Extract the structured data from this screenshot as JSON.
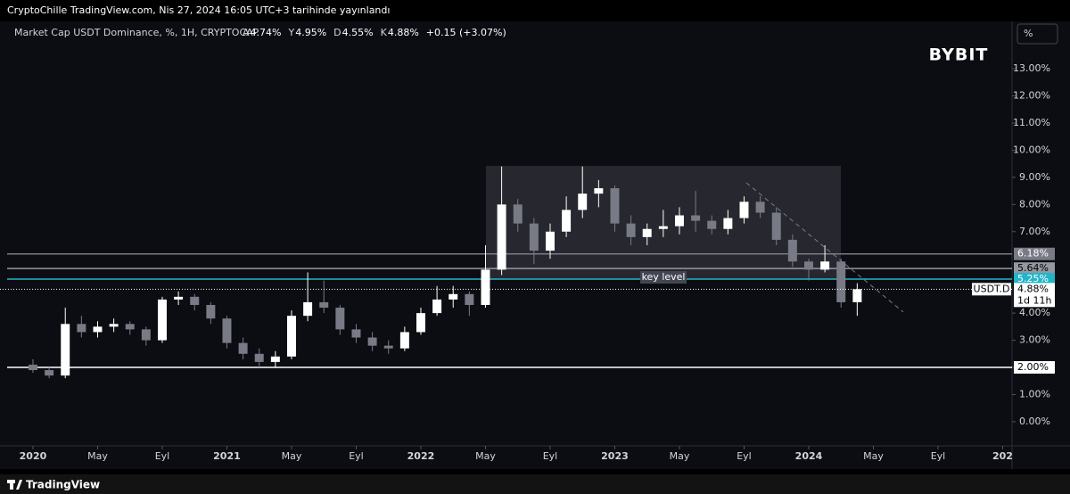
{
  "header": {
    "published": "CryptoChille TradingView.com, Nis 27, 2024 16:05 UTC+3 tarihinde yayınlandı"
  },
  "footer": {
    "brand": "TradingView"
  },
  "chart_data": {
    "type": "candlestick",
    "legend": {
      "title": "Market Cap USDT Dominance, %, 1H, CRYPTOCAP",
      "items": [
        {
          "key": "A",
          "value": "4.74%"
        },
        {
          "key": "Y",
          "value": "4.95%"
        },
        {
          "key": "D",
          "value": "4.55%"
        },
        {
          "key": "K",
          "value": "4.88%"
        }
      ],
      "change": "+0.15 (+3.07%)"
    },
    "logo": "BYBIT",
    "scale_button": "%",
    "up_color": "#ffffff",
    "down_color": "#787b86",
    "x": [
      0,
      1,
      2,
      3,
      4,
      5,
      6,
      7,
      8,
      9,
      10,
      11,
      12,
      13,
      14,
      15,
      16,
      17,
      18,
      19,
      20,
      21,
      22,
      23,
      24,
      25,
      26,
      27,
      28,
      29,
      30,
      31,
      32,
      33,
      34,
      35,
      36,
      37,
      38,
      39,
      40,
      41,
      42,
      43,
      44,
      45,
      46,
      47,
      48,
      49,
      50,
      51
    ],
    "open": [
      2.1,
      1.9,
      1.7,
      3.6,
      3.3,
      3.5,
      3.6,
      3.4,
      3.0,
      4.5,
      4.6,
      4.3,
      3.8,
      2.9,
      2.5,
      2.2,
      2.4,
      3.9,
      4.4,
      4.2,
      3.4,
      3.1,
      2.8,
      2.7,
      3.3,
      4.0,
      4.5,
      4.7,
      4.3,
      5.6,
      8.0,
      7.3,
      6.3,
      7.0,
      7.8,
      8.4,
      8.6,
      7.3,
      6.8,
      7.1,
      7.2,
      7.6,
      7.4,
      7.1,
      7.5,
      8.1,
      7.7,
      6.7,
      5.9,
      5.6,
      5.9,
      4.4
    ],
    "high": [
      2.3,
      2.0,
      4.2,
      3.9,
      3.7,
      3.8,
      3.7,
      3.5,
      4.6,
      4.8,
      4.7,
      4.4,
      3.9,
      3.1,
      2.7,
      2.6,
      4.1,
      5.5,
      5.2,
      4.3,
      3.6,
      3.3,
      3.0,
      3.5,
      4.2,
      5.0,
      5.0,
      4.8,
      6.5,
      9.4,
      8.2,
      7.5,
      7.3,
      8.3,
      9.4,
      8.9,
      8.7,
      7.6,
      7.3,
      7.8,
      7.9,
      8.5,
      7.6,
      7.8,
      8.3,
      8.3,
      7.9,
      6.9,
      6.0,
      6.5,
      6.0,
      5.1
    ],
    "low": [
      1.8,
      1.6,
      1.6,
      3.1,
      3.1,
      3.3,
      3.2,
      2.8,
      2.9,
      4.3,
      4.1,
      3.6,
      2.7,
      2.3,
      2.0,
      2.0,
      2.3,
      3.7,
      4.0,
      3.2,
      2.9,
      2.6,
      2.5,
      2.6,
      3.2,
      3.9,
      4.2,
      3.9,
      4.2,
      5.4,
      7.0,
      5.8,
      6.0,
      6.8,
      7.5,
      7.9,
      7.0,
      6.5,
      6.5,
      6.8,
      6.9,
      7.0,
      6.9,
      6.9,
      7.3,
      7.5,
      6.5,
      5.7,
      5.2,
      5.5,
      4.2,
      3.9
    ],
    "close": [
      1.9,
      1.7,
      3.6,
      3.3,
      3.5,
      3.6,
      3.4,
      3.0,
      4.5,
      4.6,
      4.3,
      3.8,
      2.9,
      2.5,
      2.2,
      2.4,
      3.9,
      4.4,
      4.2,
      3.4,
      3.1,
      2.8,
      2.7,
      3.3,
      4.0,
      4.5,
      4.7,
      4.3,
      5.6,
      8.0,
      7.3,
      6.3,
      7.0,
      7.8,
      8.4,
      8.6,
      7.3,
      6.8,
      7.1,
      7.2,
      7.6,
      7.4,
      7.1,
      7.5,
      8.1,
      7.7,
      6.7,
      5.9,
      5.6,
      5.9,
      4.4,
      4.88
    ],
    "xlim": [
      -2.04,
      60.58
    ],
    "xticks": [
      {
        "value": 0,
        "label": "2020"
      },
      {
        "value": 4,
        "label": "May"
      },
      {
        "value": 8,
        "label": "Eyl"
      },
      {
        "value": 12,
        "label": "2021"
      },
      {
        "value": 16,
        "label": "May"
      },
      {
        "value": 20,
        "label": "Eyl"
      },
      {
        "value": 24,
        "label": "2022"
      },
      {
        "value": 28,
        "label": "May"
      },
      {
        "value": 32,
        "label": "Eyl"
      },
      {
        "value": 36,
        "label": "2023"
      },
      {
        "value": 40,
        "label": "May"
      },
      {
        "value": 44,
        "label": "Eyl"
      },
      {
        "value": 48,
        "label": "2024"
      },
      {
        "value": 52,
        "label": "May"
      },
      {
        "value": 56,
        "label": "Eyl"
      },
      {
        "value": 60,
        "label": "202"
      }
    ],
    "ylim": [
      -0.89,
      13.89
    ],
    "yticks": [
      {
        "value": 0,
        "label": "0.00%"
      },
      {
        "value": 1,
        "label": "1.00%"
      },
      {
        "value": 2,
        "label": "2.00%"
      },
      {
        "value": 3,
        "label": "3.00%"
      },
      {
        "value": 4,
        "label": "4.00%"
      },
      {
        "value": 7,
        "label": "7.00%"
      },
      {
        "value": 8,
        "label": "8.00%"
      },
      {
        "value": 9,
        "label": "9.00%"
      },
      {
        "value": 10,
        "label": "10.00%"
      },
      {
        "value": 11,
        "label": "11.00%"
      },
      {
        "value": 12,
        "label": "12.00%"
      },
      {
        "value": 13,
        "label": "13.00%"
      }
    ],
    "levels": [
      {
        "value": 6.18,
        "label": "6.18%",
        "color": "#787b86"
      },
      {
        "value": 5.64,
        "label": "5.64%",
        "color": "#9598a1"
      },
      {
        "value": 5.25,
        "label": "5.25%",
        "color": "#22b5c9",
        "annotation": "key level"
      },
      {
        "value": 2,
        "label": "2.00%",
        "color": "#ffffff"
      }
    ],
    "range_box": {
      "x": [
        28.03,
        49.99
      ],
      "y": [
        5.25,
        9.42
      ]
    },
    "trendline": {
      "x": [
        44.14,
        53.85
      ],
      "y": [
        8.8,
        4.04
      ]
    },
    "last_price": {
      "value": 4.88,
      "label": "4.88%",
      "countdown": "1d 11h",
      "symbol": "USDT.D"
    }
  }
}
